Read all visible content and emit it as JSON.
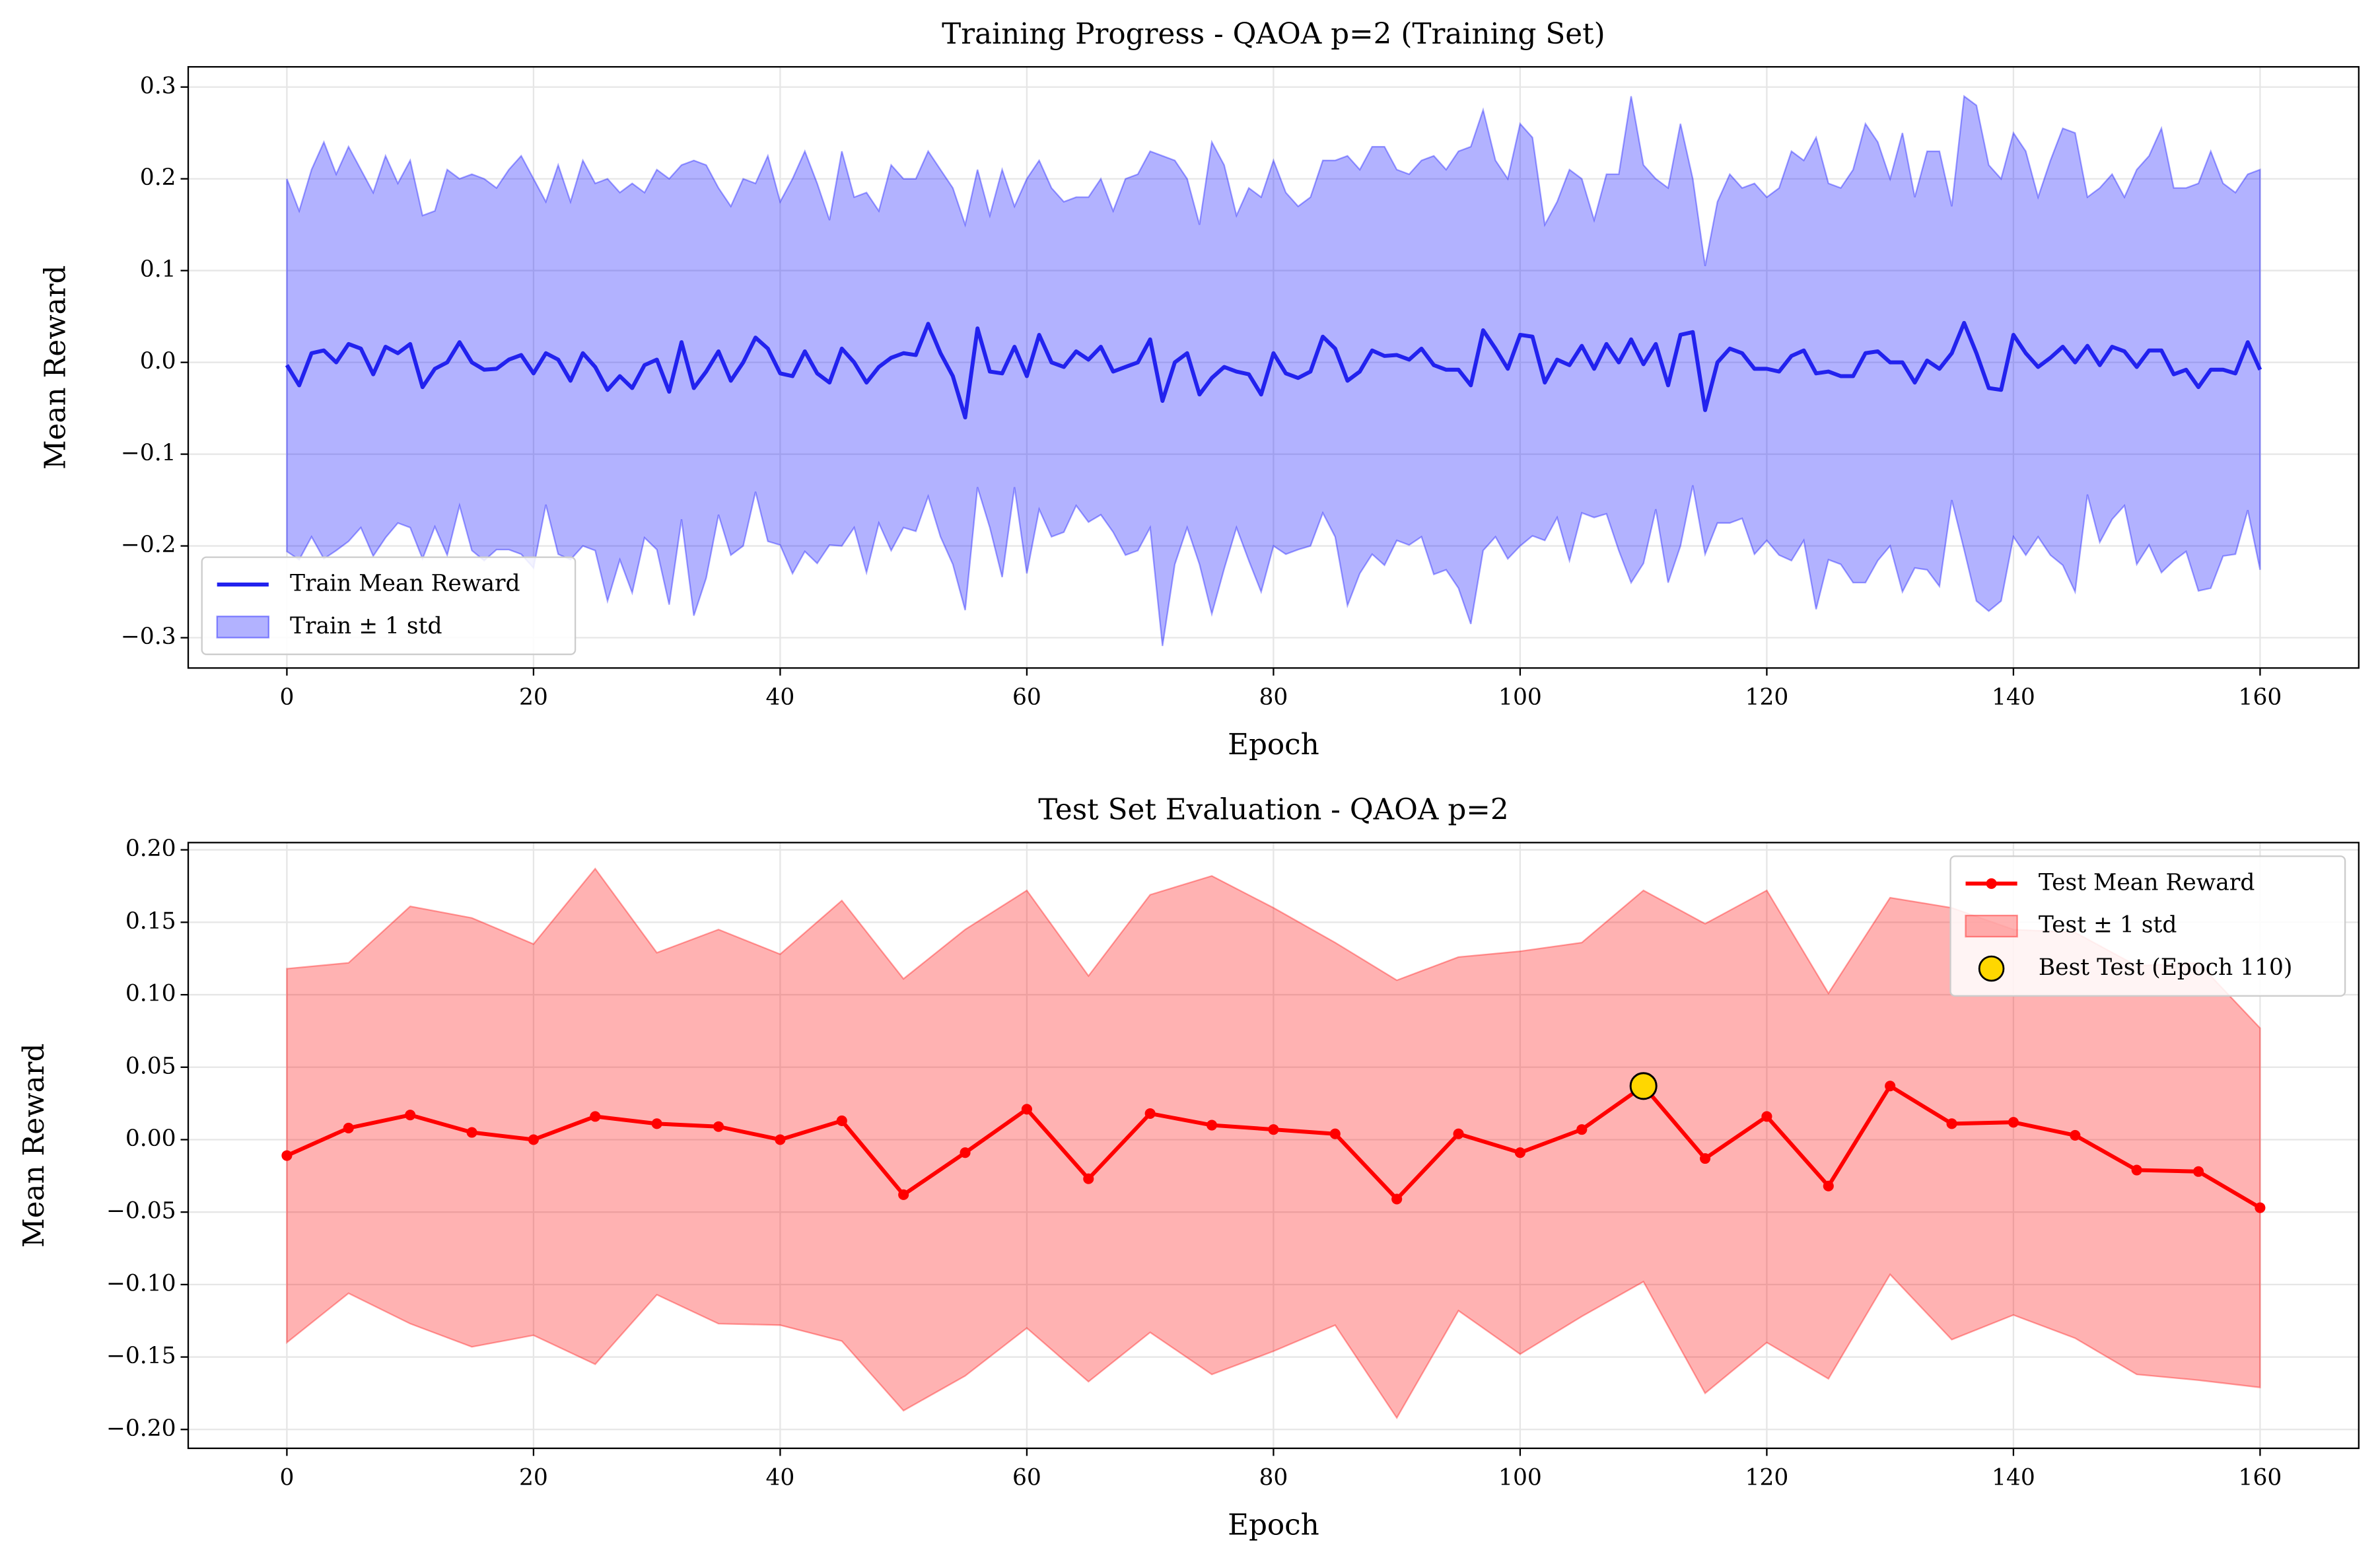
{
  "chart_data": [
    {
      "type": "line",
      "title": "Training Progress - QAOA p=2 (Training Set)",
      "xlabel": "Epoch",
      "ylabel": "Mean Reward",
      "x": [
        0,
        1,
        2,
        3,
        4,
        5,
        6,
        7,
        8,
        9,
        10,
        11,
        12,
        13,
        14,
        15,
        16,
        17,
        18,
        19,
        20,
        21,
        22,
        23,
        24,
        25,
        26,
        27,
        28,
        29,
        30,
        31,
        32,
        33,
        34,
        35,
        36,
        37,
        38,
        39,
        40,
        41,
        42,
        43,
        44,
        45,
        46,
        47,
        48,
        49,
        50,
        51,
        52,
        53,
        54,
        55,
        56,
        57,
        58,
        59,
        60,
        61,
        62,
        63,
        64,
        65,
        66,
        67,
        68,
        69,
        70,
        71,
        72,
        73,
        74,
        75,
        76,
        77,
        78,
        79,
        80,
        81,
        82,
        83,
        84,
        85,
        86,
        87,
        88,
        89,
        90,
        91,
        92,
        93,
        94,
        95,
        96,
        97,
        98,
        99,
        100,
        101,
        102,
        103,
        104,
        105,
        106,
        107,
        108,
        109,
        110,
        111,
        112,
        113,
        114,
        115,
        116,
        117,
        118,
        119,
        120,
        121,
        122,
        123,
        124,
        125,
        126,
        127,
        128,
        129,
        130,
        131,
        132,
        133,
        134,
        135,
        136,
        137,
        138,
        139,
        140,
        141,
        142,
        143,
        144,
        145,
        146,
        147,
        148,
        149,
        150,
        151,
        152,
        153,
        154,
        155,
        156,
        157,
        158,
        159,
        160
      ],
      "series": [
        {
          "name": "Train Mean Reward",
          "type": "line",
          "color": "#2222ee",
          "values": [
            -0.003,
            -0.025,
            0.01,
            0.013,
            0.0,
            0.02,
            0.015,
            -0.013,
            0.017,
            0.01,
            0.02,
            -0.027,
            -0.007,
            0.0,
            0.022,
            0.0,
            -0.008,
            -0.007,
            0.003,
            0.008,
            -0.012,
            0.01,
            0.003,
            -0.02,
            0.01,
            -0.005,
            -0.03,
            -0.015,
            -0.028,
            -0.003,
            0.003,
            -0.032,
            0.022,
            -0.028,
            -0.01,
            0.012,
            -0.02,
            0.0,
            0.027,
            0.015,
            -0.012,
            -0.015,
            0.012,
            -0.012,
            -0.022,
            0.015,
            0.0,
            -0.022,
            -0.005,
            0.005,
            0.01,
            0.008,
            0.042,
            0.01,
            -0.015,
            -0.06,
            0.037,
            -0.01,
            -0.012,
            0.017,
            -0.015,
            0.03,
            0.0,
            -0.005,
            0.012,
            0.003,
            0.017,
            -0.01,
            -0.005,
            0.0,
            0.025,
            -0.042,
            0.0,
            0.01,
            -0.035,
            -0.017,
            -0.005,
            -0.01,
            -0.013,
            -0.035,
            0.01,
            -0.012,
            -0.017,
            -0.01,
            0.028,
            0.015,
            -0.02,
            -0.01,
            0.013,
            0.007,
            0.008,
            0.003,
            0.015,
            -0.003,
            -0.008,
            -0.008,
            -0.025,
            0.035,
            0.015,
            -0.007,
            0.03,
            0.028,
            -0.022,
            0.003,
            -0.003,
            0.018,
            -0.007,
            0.02,
            0.0,
            0.025,
            -0.002,
            0.02,
            -0.025,
            0.03,
            0.033,
            -0.052,
            0.0,
            0.015,
            0.01,
            -0.007,
            -0.007,
            -0.01,
            0.007,
            0.013,
            -0.012,
            -0.01,
            -0.015,
            -0.015,
            0.01,
            0.012,
            0.0,
            0.0,
            -0.022,
            0.002,
            -0.007,
            0.01,
            0.043,
            0.01,
            -0.028,
            -0.03,
            0.03,
            0.01,
            -0.005,
            0.005,
            0.017,
            0.0,
            0.018,
            -0.003,
            0.017,
            0.012,
            -0.005,
            0.013,
            0.013,
            -0.013,
            -0.008,
            -0.027,
            -0.008,
            -0.008,
            -0.012,
            0.022,
            -0.008
          ]
        },
        {
          "name": "Train ± 1 std",
          "type": "band",
          "color": "#0000ff",
          "values": [
            0.203,
            0.19,
            0.2,
            0.227,
            0.205,
            0.215,
            0.195,
            0.198,
            0.208,
            0.185,
            0.2,
            0.187,
            0.172,
            0.21,
            0.178,
            0.205,
            0.208,
            0.197,
            0.207,
            0.217,
            0.212,
            0.165,
            0.212,
            0.195,
            0.21,
            0.2,
            0.23,
            0.2,
            0.223,
            0.188,
            0.207,
            0.232,
            0.193,
            0.248,
            0.225,
            0.178,
            0.19,
            0.2,
            0.168,
            0.21,
            0.187,
            0.215,
            0.218,
            0.207,
            0.177,
            0.215,
            0.18,
            0.207,
            0.17,
            0.21,
            0.19,
            0.192,
            0.188,
            0.2,
            0.205,
            0.21,
            0.173,
            0.17,
            0.222,
            0.153,
            0.215,
            0.19,
            0.19,
            0.18,
            0.168,
            0.177,
            0.183,
            0.175,
            0.205,
            0.205,
            0.205,
            0.267,
            0.22,
            0.19,
            0.185,
            0.257,
            0.22,
            0.17,
            0.203,
            0.215,
            0.21,
            0.197,
            0.187,
            0.19,
            0.192,
            0.205,
            0.245,
            0.22,
            0.222,
            0.228,
            0.202,
            0.202,
            0.205,
            0.228,
            0.218,
            0.238,
            0.26,
            0.24,
            0.205,
            0.207,
            0.23,
            0.217,
            0.172,
            0.172,
            0.213,
            0.182,
            0.162,
            0.185,
            0.205,
            0.265,
            0.217,
            0.18,
            0.215,
            0.23,
            0.167,
            0.157,
            0.175,
            0.19,
            0.18,
            0.202,
            0.187,
            0.2,
            0.223,
            0.207,
            0.257,
            0.205,
            0.205,
            0.225,
            0.25,
            0.228,
            0.2,
            0.25,
            0.202,
            0.228,
            0.237,
            0.16,
            0.247,
            0.27,
            0.243,
            0.23,
            0.22,
            0.22,
            0.185,
            0.215,
            0.238,
            0.25,
            0.162,
            0.193,
            0.188,
            0.168,
            0.215,
            0.212,
            0.242,
            0.203,
            0.198,
            0.222,
            0.238,
            0.203,
            0.197,
            0.183,
            0.218
          ]
        }
      ],
      "xlim": [
        -8,
        168
      ],
      "xticks": [
        0,
        20,
        40,
        60,
        80,
        100,
        120,
        140,
        160
      ],
      "ylim": [
        -0.333,
        0.322
      ],
      "yticks": [
        {
          "value": -0.3,
          "label": "−0.3"
        },
        {
          "value": -0.2,
          "label": "−0.2"
        },
        {
          "value": -0.1,
          "label": "−0.1"
        },
        {
          "value": 0,
          "label": "0.0"
        },
        0.1,
        0.2,
        0.3
      ],
      "grid": true,
      "legend": "lower left"
    },
    {
      "type": "line",
      "title": "Test Set Evaluation - QAOA p=2",
      "xlabel": "Epoch",
      "ylabel": "Mean Reward",
      "x": [
        0,
        5,
        10,
        15,
        20,
        25,
        30,
        35,
        40,
        45,
        50,
        55,
        60,
        65,
        70,
        75,
        80,
        85,
        90,
        95,
        100,
        105,
        110,
        115,
        120,
        125,
        130,
        135,
        140,
        145,
        150,
        155,
        160
      ],
      "series": [
        {
          "name": "Test Mean Reward",
          "type": "line",
          "marker": true,
          "color": "#ff0000",
          "values": [
            -0.011,
            0.008,
            0.017,
            0.005,
            0.0,
            0.016,
            0.011,
            0.009,
            0.0,
            0.013,
            -0.038,
            -0.009,
            0.021,
            -0.027,
            0.018,
            0.01,
            0.007,
            0.004,
            -0.041,
            0.004,
            -0.009,
            0.007,
            0.037,
            -0.013,
            0.016,
            -0.032,
            0.037,
            0.011,
            0.012,
            0.003,
            -0.021,
            -0.022,
            -0.047
          ]
        },
        {
          "name": "Test ± 1 std",
          "type": "band",
          "color": "#ff0000",
          "values": [
            0.129,
            0.114,
            0.144,
            0.148,
            0.135,
            0.171,
            0.118,
            0.136,
            0.128,
            0.152,
            0.149,
            0.154,
            0.151,
            0.14,
            0.151,
            0.172,
            0.153,
            0.132,
            0.151,
            0.122,
            0.139,
            0.129,
            0.135,
            0.162,
            0.156,
            0.133,
            0.13,
            0.149,
            0.133,
            0.14,
            0.141,
            0.144,
            0.124
          ]
        }
      ],
      "highlight": {
        "name": "Best Test (Epoch 110)",
        "x": 110,
        "y": 0.037,
        "color": "#ffd700"
      },
      "xlim": [
        -8,
        168
      ],
      "xticks": [
        0,
        20,
        40,
        60,
        80,
        100,
        120,
        140,
        160
      ],
      "ylim": [
        -0.213,
        0.205
      ],
      "yticks": [
        {
          "value": -0.2,
          "label": "−0.20"
        },
        {
          "value": -0.15,
          "label": "−0.15"
        },
        {
          "value": -0.1,
          "label": "−0.10"
        },
        {
          "value": -0.05,
          "label": "−0.05"
        },
        {
          "value": 0,
          "label": "0.00"
        },
        0.05,
        {
          "value": 0.1,
          "label": "0.10"
        },
        0.15,
        {
          "value": 0.2,
          "label": "0.20"
        }
      ],
      "grid": true,
      "legend": "upper right"
    }
  ]
}
